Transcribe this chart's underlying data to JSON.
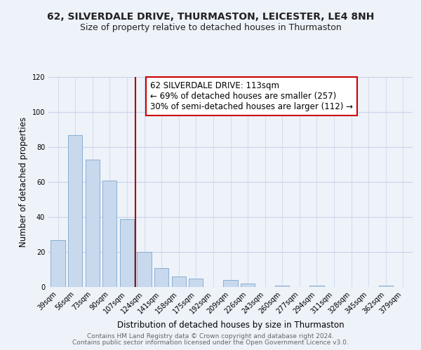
{
  "title": "62, SILVERDALE DRIVE, THURMASTON, LEICESTER, LE4 8NH",
  "subtitle": "Size of property relative to detached houses in Thurmaston",
  "xlabel": "Distribution of detached houses by size in Thurmaston",
  "ylabel": "Number of detached properties",
  "bar_labels": [
    "39sqm",
    "56sqm",
    "73sqm",
    "90sqm",
    "107sqm",
    "124sqm",
    "141sqm",
    "158sqm",
    "175sqm",
    "192sqm",
    "209sqm",
    "226sqm",
    "243sqm",
    "260sqm",
    "277sqm",
    "294sqm",
    "311sqm",
    "328sqm",
    "345sqm",
    "362sqm",
    "379sqm"
  ],
  "bar_values": [
    27,
    87,
    73,
    61,
    39,
    20,
    11,
    6,
    5,
    0,
    4,
    2,
    0,
    1,
    0,
    1,
    0,
    0,
    0,
    1,
    0
  ],
  "bar_color": "#c8d9ee",
  "bar_edge_color": "#7ca7cc",
  "vline_x": 4.5,
  "vline_color": "#aa0000",
  "annotation_line1": "62 SILVERDALE DRIVE: 113sqm",
  "annotation_line2": "← 69% of detached houses are smaller (257)",
  "annotation_line3": "30% of semi-detached houses are larger (112) →",
  "annotation_box_color": "#ffffff",
  "annotation_box_edge_color": "#cc0000",
  "ylim": [
    0,
    120
  ],
  "yticks": [
    0,
    20,
    40,
    60,
    80,
    100,
    120
  ],
  "grid_color": "#c8d4e8",
  "bg_color": "#eef2f9",
  "footer1": "Contains HM Land Registry data © Crown copyright and database right 2024.",
  "footer2": "Contains public sector information licensed under the Open Government Licence v3.0.",
  "title_fontsize": 10,
  "subtitle_fontsize": 9,
  "axis_label_fontsize": 8.5,
  "tick_fontsize": 7,
  "annotation_fontsize": 8.5,
  "footer_fontsize": 6.5
}
